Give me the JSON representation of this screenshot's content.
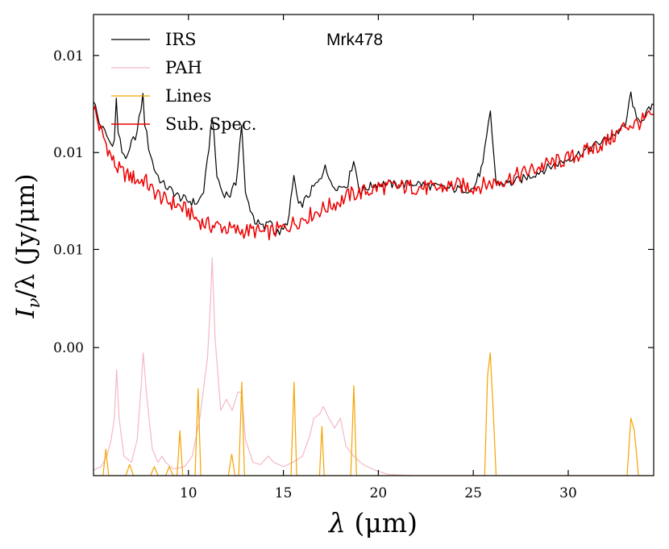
{
  "chart_data": {
    "type": "line",
    "title": "Mrk478",
    "xlabel": "λ (μm)",
    "ylabel": "Iν/λ (Jy/μm)",
    "ylabel_parts": {
      "main": "I",
      "sub": "ν",
      "rest": "/λ (Jy/μm)"
    },
    "xlabel_parts": {
      "main": "λ",
      "rest": " (μm)"
    },
    "xscale": "linear",
    "yscale": "log",
    "xlim": [
      5,
      34.5
    ],
    "ylim": [
      0.0014,
      0.0245
    ],
    "legend_position": "top-left",
    "x_ticks": [
      10,
      15,
      20,
      25,
      30
    ],
    "x_tick_labels": [
      "10",
      "15",
      "20",
      "25",
      "30"
    ],
    "x_minor_ticks": [],
    "y_ticks": [
      0.0031,
      0.0057,
      0.0104,
      0.019
    ],
    "y_tick_labels": [
      "0.00",
      "0.01",
      "0.01",
      "0.01"
    ],
    "series": [
      {
        "name": "IRS",
        "color": "#000000",
        "x": [
          5.0,
          5.3,
          5.6,
          5.9,
          6.1,
          6.2,
          6.3,
          6.5,
          6.8,
          7.0,
          7.3,
          7.6,
          7.7,
          7.9,
          8.2,
          8.6,
          9.0,
          9.5,
          10.0,
          10.5,
          10.8,
          11.0,
          11.25,
          11.5,
          11.8,
          12.2,
          12.5,
          12.8,
          13.0,
          13.5,
          14.0,
          14.3,
          14.6,
          15.0,
          15.3,
          15.55,
          15.8,
          16.2,
          16.6,
          17.0,
          17.2,
          17.5,
          18.0,
          18.4,
          18.7,
          19.0,
          19.5,
          20.0,
          21.0,
          22.0,
          23.0,
          24.0,
          25.0,
          25.5,
          25.9,
          26.2,
          27.0,
          28.0,
          29.0,
          30.0,
          31.0,
          32.0,
          33.0,
          33.3,
          33.6,
          34.0,
          34.5
        ],
        "values": [
          0.0145,
          0.0125,
          0.0118,
          0.011,
          0.0112,
          0.0145,
          0.0118,
          0.0105,
          0.01,
          0.011,
          0.0118,
          0.0148,
          0.0125,
          0.0108,
          0.0094,
          0.0086,
          0.0083,
          0.0079,
          0.0077,
          0.0076,
          0.0082,
          0.0098,
          0.0132,
          0.009,
          0.0081,
          0.008,
          0.0086,
          0.0124,
          0.008,
          0.0068,
          0.0065,
          0.0069,
          0.0063,
          0.0064,
          0.007,
          0.009,
          0.0074,
          0.0078,
          0.0084,
          0.0088,
          0.0098,
          0.0085,
          0.0084,
          0.0086,
          0.01,
          0.0082,
          0.0084,
          0.0086,
          0.0085,
          0.0086,
          0.0084,
          0.0083,
          0.0083,
          0.0096,
          0.0134,
          0.0086,
          0.0086,
          0.009,
          0.0095,
          0.01,
          0.0106,
          0.0113,
          0.0122,
          0.015,
          0.0126,
          0.013,
          0.014
        ]
      },
      {
        "name": "PAH",
        "color": "#f4b8c4",
        "x": [
          5.0,
          5.4,
          5.7,
          5.9,
          6.1,
          6.22,
          6.35,
          6.6,
          7.0,
          7.3,
          7.5,
          7.62,
          7.8,
          8.1,
          8.4,
          8.6,
          8.8,
          9.2,
          9.8,
          10.2,
          10.6,
          11.0,
          11.15,
          11.25,
          11.4,
          11.7,
          12.0,
          12.3,
          12.6,
          12.8,
          13.0,
          13.4,
          13.8,
          14.2,
          14.5,
          15.0,
          15.5,
          16.0,
          16.4,
          16.6,
          16.9,
          17.1,
          17.4,
          17.7,
          18.0,
          18.3,
          18.7,
          19.2,
          19.8,
          20.5,
          22.0,
          25.0,
          30.0,
          34.5
        ],
        "values": [
          0.00145,
          0.00148,
          0.00158,
          0.00172,
          0.002,
          0.0027,
          0.002,
          0.00158,
          0.00152,
          0.00175,
          0.0024,
          0.003,
          0.0023,
          0.00165,
          0.00152,
          0.00158,
          0.00152,
          0.00146,
          0.00148,
          0.00158,
          0.002,
          0.0029,
          0.004,
          0.0054,
          0.0033,
          0.0021,
          0.00225,
          0.0021,
          0.00235,
          0.00235,
          0.00175,
          0.00152,
          0.0015,
          0.00158,
          0.00152,
          0.00148,
          0.00152,
          0.00158,
          0.0018,
          0.002,
          0.00205,
          0.00215,
          0.002,
          0.00188,
          0.002,
          0.00168,
          0.00158,
          0.0015,
          0.00145,
          0.00141,
          0.0014,
          0.0014,
          0.0014,
          0.0014
        ]
      },
      {
        "name": "Lines",
        "color": "#f5a300",
        "x": [
          5.0,
          5.5,
          5.65,
          5.8,
          6.7,
          6.9,
          7.1,
          8.0,
          8.2,
          8.4,
          8.8,
          8.99,
          9.2,
          9.4,
          9.55,
          9.7,
          10.35,
          10.51,
          10.65,
          12.1,
          12.28,
          12.45,
          12.65,
          12.81,
          12.95,
          15.4,
          15.56,
          15.7,
          16.9,
          17.03,
          17.15,
          18.55,
          18.71,
          18.85,
          25.6,
          25.75,
          25.89,
          26.05,
          26.2,
          33.1,
          33.3,
          33.48,
          33.7,
          34.5
        ],
        "values": [
          0.0014,
          0.0014,
          0.00165,
          0.0014,
          0.0014,
          0.0015,
          0.0014,
          0.0014,
          0.00148,
          0.0014,
          0.0014,
          0.00148,
          0.0014,
          0.0014,
          0.00185,
          0.0014,
          0.0014,
          0.0024,
          0.0014,
          0.0014,
          0.0016,
          0.0014,
          0.0014,
          0.0025,
          0.0014,
          0.0014,
          0.0025,
          0.0014,
          0.0014,
          0.0019,
          0.0014,
          0.0014,
          0.00245,
          0.0014,
          0.0014,
          0.0026,
          0.003,
          0.0021,
          0.0014,
          0.0014,
          0.002,
          0.00185,
          0.0014,
          0.0014
        ]
      },
      {
        "name": "Sub. Spec.",
        "color": "#ee0000",
        "x": [
          5.0,
          5.3,
          5.6,
          5.9,
          6.2,
          6.5,
          6.8,
          7.1,
          7.4,
          7.7,
          8.0,
          8.4,
          8.8,
          9.2,
          9.6,
          10.0,
          10.4,
          10.8,
          11.2,
          11.6,
          12.0,
          12.5,
          13.0,
          13.5,
          14.0,
          14.5,
          15.0,
          15.5,
          16.0,
          16.5,
          17.0,
          17.5,
          18.0,
          18.5,
          19.0,
          19.5,
          20.0,
          21.0,
          22.0,
          23.0,
          24.0,
          25.0,
          26.0,
          27.0,
          28.0,
          29.0,
          30.0,
          31.0,
          32.0,
          32.6,
          33.0,
          33.5,
          34.0,
          34.5
        ],
        "values": [
          0.014,
          0.0122,
          0.0112,
          0.0102,
          0.0095,
          0.0092,
          0.009,
          0.0089,
          0.0087,
          0.0088,
          0.0083,
          0.008,
          0.0077,
          0.0076,
          0.0074,
          0.0072,
          0.0069,
          0.0067,
          0.0066,
          0.0066,
          0.0065,
          0.0064,
          0.0064,
          0.0064,
          0.0063,
          0.0064,
          0.0065,
          0.0067,
          0.0069,
          0.0071,
          0.0073,
          0.0075,
          0.0077,
          0.008,
          0.0081,
          0.0082,
          0.0084,
          0.0084,
          0.0084,
          0.0083,
          0.0085,
          0.0084,
          0.0086,
          0.0089,
          0.0093,
          0.0097,
          0.01,
          0.0105,
          0.0111,
          0.0117,
          0.0123,
          0.0124,
          0.0127,
          0.0132
        ]
      }
    ]
  }
}
